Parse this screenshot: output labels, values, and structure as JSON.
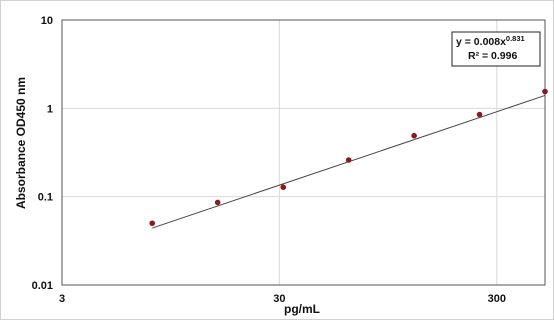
{
  "chart_data": {
    "type": "scatter",
    "title": "",
    "xlabel": "pg/mL",
    "ylabel": "Absorbance OD450 nm",
    "x_scale": "log",
    "y_scale": "log",
    "xlim": [
      3,
      500
    ],
    "ylim": [
      0.01,
      10
    ],
    "x_ticks": [
      3,
      30,
      300
    ],
    "x_tick_labels": [
      "3",
      "30",
      "300"
    ],
    "y_ticks": [
      0.01,
      0.1,
      1,
      10
    ],
    "y_tick_labels": [
      "0.01",
      "0.1",
      "1",
      "10"
    ],
    "grid": true,
    "series": [
      {
        "x": [
          7.8,
          15.6,
          31.25,
          62.5,
          125,
          250,
          500
        ],
        "y": [
          0.05,
          0.086,
          0.128,
          0.26,
          0.49,
          0.85,
          1.55
        ],
        "color": "#8b1a1a"
      }
    ],
    "trendline": {
      "a": 0.008,
      "b": 0.831,
      "x_range": [
        7.8,
        500
      ],
      "color": "#444444"
    },
    "annotation": {
      "equation_prefix": "y = 0.008x",
      "equation_exponent": "0.831",
      "r_squared": "R² = 0.996"
    }
  }
}
